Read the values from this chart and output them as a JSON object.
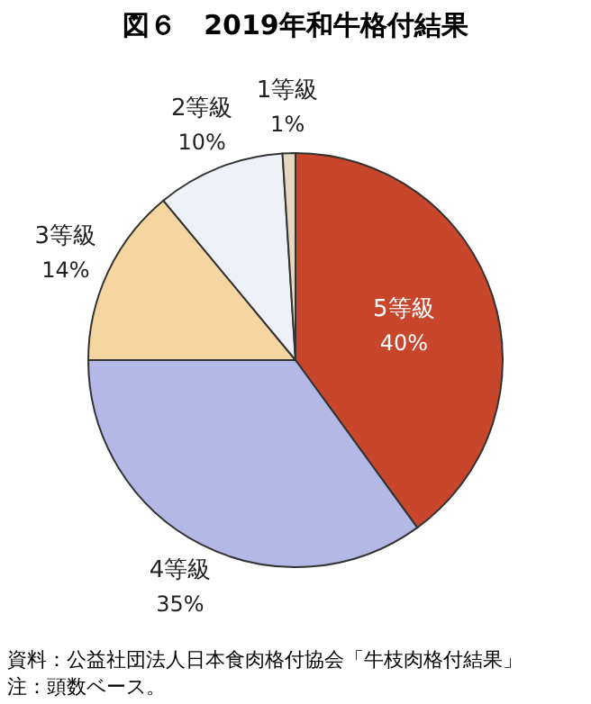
{
  "chart_data": {
    "type": "pie",
    "title": "図６　2019年和牛格付結果",
    "categories": [
      "5等級",
      "4等級",
      "3等級",
      "2等級",
      "1等級"
    ],
    "values": [
      40,
      35,
      14,
      10,
      1
    ],
    "value_labels": [
      "40%",
      "35%",
      "14%",
      "10%",
      "1%"
    ],
    "colors": [
      "#c8462c",
      "#b4b8e6",
      "#f6d6a0",
      "#eef2f8",
      "#e6d8c0"
    ],
    "annotations": [
      "資料：公益社団法人日本食肉格付協会「牛枝肉格付結果」",
      "　注：頭数ベース。"
    ]
  }
}
